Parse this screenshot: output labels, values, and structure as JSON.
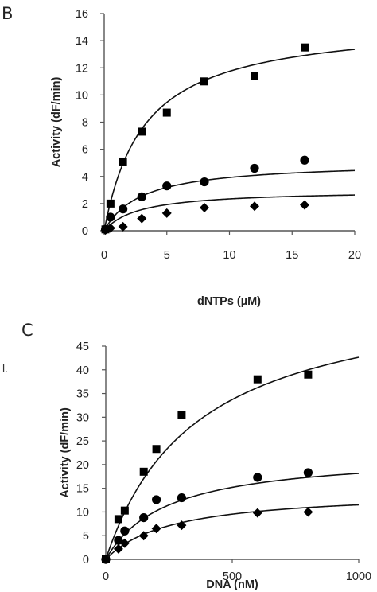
{
  "chart_data": [
    {
      "type": "scatter",
      "panel_label": "B",
      "xlabel": "dNTPs (µM)",
      "ylabel": "Activity (dF/min)",
      "xlim": [
        0,
        20
      ],
      "ylim": [
        0,
        16
      ],
      "x_ticks": [
        0,
        5,
        10,
        15,
        20
      ],
      "y_ticks": [
        0,
        2,
        4,
        6,
        8,
        10,
        12,
        14,
        16
      ],
      "grid": false,
      "legend": "none",
      "series": [
        {
          "marker": "square",
          "x": [
            0.1,
            0.5,
            1.5,
            3,
            5,
            8,
            12,
            16
          ],
          "y": [
            0.1,
            2.0,
            5.1,
            7.3,
            8.7,
            11.0,
            11.4,
            13.5
          ],
          "fit": {
            "model": "Michaelis-Menten",
            "vmax": 15.5,
            "km": 3.2
          }
        },
        {
          "marker": "circle",
          "x": [
            0.1,
            0.5,
            1.5,
            3,
            5,
            8,
            12,
            16
          ],
          "y": [
            0.1,
            1.0,
            1.6,
            2.5,
            3.3,
            3.6,
            4.6,
            5.2
          ],
          "fit": {
            "model": "Michaelis-Menten",
            "vmax": 5.1,
            "km": 3.0
          }
        },
        {
          "marker": "diamond",
          "x": [
            0.1,
            0.5,
            1.5,
            3,
            5,
            8,
            12,
            16
          ],
          "y": [
            0.05,
            0.2,
            0.3,
            0.9,
            1.3,
            1.7,
            1.8,
            1.9
          ],
          "fit": {
            "model": "Michaelis-Menten",
            "vmax": 3.0,
            "km": 2.8
          }
        }
      ]
    },
    {
      "type": "scatter",
      "panel_label": "C",
      "xlabel": "DNA (nM)",
      "ylabel": "Activity (dF/min)",
      "xlim": [
        0,
        1000
      ],
      "ylim": [
        0,
        45
      ],
      "x_ticks": [
        0,
        500,
        1000
      ],
      "y_ticks": [
        0,
        5,
        10,
        15,
        20,
        25,
        30,
        35,
        40,
        45
      ],
      "grid": false,
      "legend": "none",
      "series": [
        {
          "marker": "square",
          "x": [
            0,
            50,
            75,
            150,
            200,
            300,
            600,
            800
          ],
          "y": [
            0,
            8.5,
            10.3,
            18.5,
            23.3,
            30.5,
            38.0,
            39.0
          ],
          "fit": {
            "model": "Michaelis-Menten",
            "vmax": 58,
            "km": 360
          }
        },
        {
          "marker": "circle",
          "x": [
            0,
            50,
            75,
            150,
            200,
            300,
            600,
            800
          ],
          "y": [
            0,
            4.0,
            6.0,
            8.8,
            12.6,
            13.0,
            17.3,
            18.3
          ],
          "fit": {
            "model": "Michaelis-Menten",
            "vmax": 22.5,
            "km": 240
          }
        },
        {
          "marker": "diamond",
          "x": [
            0,
            50,
            75,
            150,
            200,
            300,
            600,
            800
          ],
          "y": [
            0,
            2.2,
            3.4,
            5.0,
            6.5,
            7.2,
            9.8,
            10.0
          ],
          "fit": {
            "model": "Michaelis-Menten",
            "vmax": 14.5,
            "km": 260
          }
        }
      ]
    }
  ],
  "stray_text": "l."
}
